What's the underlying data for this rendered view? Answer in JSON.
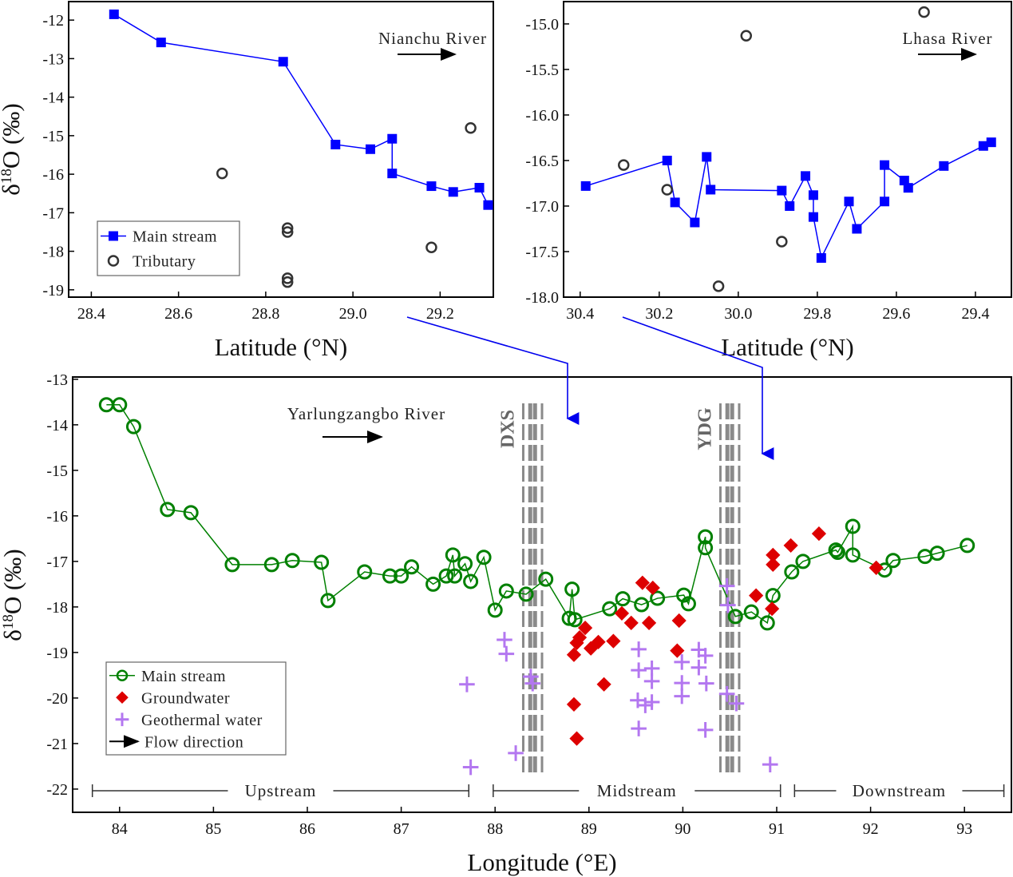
{
  "chart_data": [
    {
      "id": "nianchu",
      "type": "scatter",
      "annotation": "Nianchu River",
      "xlabel": "Latitude (°N)",
      "ylabel_prefix": "δ",
      "ylabel_sup": "18",
      "ylabel_suffix": "O (‰)",
      "xlim": [
        28.348,
        29.322
      ],
      "ylim": [
        -19.19,
        -11.52
      ],
      "xticks": [
        28.4,
        28.6,
        28.8,
        29.0,
        29.2
      ],
      "xtick_labels": [
        "28.4",
        "28.6",
        "28.8",
        "29.0",
        "29.2"
      ],
      "yticks": [
        -12,
        -13,
        -14,
        -15,
        -16,
        -17,
        -18,
        -19
      ],
      "ytick_labels": [
        "-12",
        "-13",
        "-14",
        "-15",
        "-16",
        "-17",
        "-18",
        "-19"
      ],
      "legend_position": "bottom-left",
      "series": [
        {
          "name": "Main  stream",
          "marker": "square",
          "color": "#0000ff",
          "line": true,
          "x": [
            28.452,
            28.56,
            28.84,
            28.96,
            29.04,
            29.09,
            29.09,
            29.18,
            29.23,
            29.29,
            29.31
          ],
          "y": [
            -11.85,
            -12.58,
            -13.08,
            -15.23,
            -15.35,
            -15.08,
            -15.98,
            -16.31,
            -16.46,
            -16.35,
            -16.8
          ]
        },
        {
          "name": "Tributary",
          "marker": "open-circle",
          "color": "#333333",
          "line": false,
          "x": [
            28.7,
            29.27,
            28.85,
            28.85,
            28.85,
            28.85,
            29.18
          ],
          "y": [
            -15.98,
            -14.8,
            -17.4,
            -17.5,
            -18.7,
            -18.8,
            -17.9
          ]
        }
      ]
    },
    {
      "id": "lhasa",
      "type": "scatter",
      "annotation": "Lhasa River",
      "xlabel": "Latitude (°N)",
      "x_reversed": true,
      "xlim": [
        30.442,
        29.309
      ],
      "ylim": [
        -18.0,
        -14.755
      ],
      "xticks": [
        30.4,
        30.2,
        30.0,
        29.8,
        29.6,
        29.4
      ],
      "xtick_labels": [
        "30.4",
        "30.2",
        "30.0",
        "29.8",
        "29.6",
        "29.4"
      ],
      "yticks": [
        -15.0,
        -15.5,
        -16.0,
        -16.5,
        -17.0,
        -17.5,
        -18.0
      ],
      "ytick_labels": [
        "-15.0",
        "-15.5",
        "-16.0",
        "-16.5",
        "-17.0",
        "-17.5",
        "-18.0"
      ],
      "series": [
        {
          "marker": "square",
          "color": "#0000ff",
          "line": true,
          "x": [
            30.386,
            30.18,
            30.16,
            30.11,
            30.08,
            30.07,
            29.89,
            29.87,
            29.83,
            29.81,
            29.81,
            29.79,
            29.72,
            29.7,
            29.63,
            29.63,
            29.58,
            29.57,
            29.48,
            29.38,
            29.36
          ],
          "y": [
            -16.78,
            -16.5,
            -16.96,
            -17.18,
            -16.46,
            -16.82,
            -16.83,
            -17.0,
            -16.67,
            -16.88,
            -17.12,
            -17.57,
            -16.95,
            -17.25,
            -16.95,
            -16.55,
            -16.72,
            -16.8,
            -16.56,
            -16.34,
            -16.3
          ]
        },
        {
          "marker": "open-circle",
          "color": "#333333",
          "line": false,
          "x": [
            30.29,
            30.18,
            29.98,
            30.05,
            29.89,
            29.53
          ],
          "y": [
            -16.55,
            -16.82,
            -15.13,
            -17.88,
            -17.39,
            -14.87
          ]
        }
      ]
    },
    {
      "id": "yarlung",
      "type": "scatter",
      "annotation": "Yarlungzangbo River",
      "xlabel": "Longitude (°E)",
      "ylabel_prefix": "δ",
      "ylabel_sup": "18",
      "ylabel_suffix": "O (‰)",
      "xlim": [
        83.5,
        93.5
      ],
      "ylim": [
        -22.51,
        -12.95
      ],
      "xticks": [
        84,
        85,
        86,
        87,
        88,
        89,
        90,
        91,
        92,
        93
      ],
      "xtick_labels": [
        "84",
        "85",
        "86",
        "87",
        "88",
        "89",
        "90",
        "91",
        "92",
        "93"
      ],
      "yticks": [
        -13,
        -14,
        -15,
        -16,
        -17,
        -18,
        -19,
        -20,
        -21,
        -22
      ],
      "ytick_labels": [
        "-13",
        "-14",
        "-15",
        "-16",
        "-17",
        "-18",
        "-19",
        "-20",
        "-21",
        "-22"
      ],
      "legend_position": "bottom-left",
      "bands": [
        {
          "label": "DXS",
          "x": [
            88.3,
            88.5
          ]
        },
        {
          "label": "YDG",
          "x": [
            90.4,
            90.6
          ]
        }
      ],
      "regions": [
        {
          "label": "Upstream",
          "x": [
            83.71,
            87.72
          ]
        },
        {
          "label": "Midstream",
          "x": [
            87.98,
            91.04
          ]
        },
        {
          "label": "Downstream",
          "x": [
            91.19,
            93.42
          ]
        }
      ],
      "flow_label": "Flow direction",
      "series": [
        {
          "name": "Main stream",
          "marker": "open-circle",
          "color": "#008000",
          "line": true,
          "x": [
            83.86,
            84.0,
            84.15,
            84.51,
            84.76,
            85.2,
            85.62,
            85.84,
            86.15,
            86.22,
            86.61,
            86.88,
            87.0,
            87.11,
            87.34,
            87.48,
            87.55,
            87.57,
            87.68,
            87.74,
            87.88,
            88.0,
            88.12,
            88.33,
            88.54,
            88.79,
            88.82,
            88.85,
            89.22,
            89.36,
            89.56,
            89.73,
            90.01,
            90.06,
            90.24,
            90.24,
            90.56,
            90.73,
            90.9,
            90.96,
            91.16,
            91.28,
            91.63,
            91.65,
            91.81,
            91.81,
            92.15,
            92.24,
            92.58,
            92.71,
            93.03
          ],
          "y": [
            -13.56,
            -13.56,
            -14.04,
            -15.86,
            -15.93,
            -17.07,
            -17.07,
            -16.98,
            -17.02,
            -17.86,
            -17.23,
            -17.32,
            -17.32,
            -17.12,
            -17.5,
            -17.32,
            -16.86,
            -17.32,
            -17.05,
            -17.44,
            -16.91,
            -18.07,
            -17.65,
            -17.72,
            -17.39,
            -18.25,
            -17.61,
            -18.28,
            -18.04,
            -17.82,
            -17.95,
            -17.81,
            -17.74,
            -17.93,
            -16.46,
            -16.7,
            -18.21,
            -18.11,
            -18.35,
            -17.75,
            -17.23,
            -17.0,
            -16.75,
            -16.8,
            -16.23,
            -16.86,
            -17.19,
            -16.98,
            -16.89,
            -16.82,
            -16.65
          ]
        },
        {
          "name": "Groundwater",
          "marker": "diamond",
          "color": "#dd0000",
          "line": false,
          "x": [
            88.84,
            88.87,
            88.84,
            88.87,
            88.9,
            88.96,
            89.02,
            89.1,
            89.26,
            89.16,
            89.35,
            89.45,
            89.57,
            89.68,
            89.64,
            89.96,
            89.94,
            90.96,
            90.96,
            90.95,
            90.78,
            91.15,
            91.45,
            92.06
          ],
          "y": [
            -20.14,
            -20.89,
            -19.05,
            -18.79,
            -18.67,
            -18.46,
            -18.91,
            -18.77,
            -18.75,
            -19.7,
            -18.14,
            -18.35,
            -17.47,
            -17.58,
            -18.35,
            -18.3,
            -18.96,
            -16.86,
            -17.07,
            -18.04,
            -17.75,
            -16.65,
            -16.39,
            -17.14
          ]
        },
        {
          "name": "Geothermal water",
          "marker": "plus",
          "color": "#b377f0",
          "line": false,
          "x": [
            87.7,
            87.74,
            88.1,
            88.12,
            88.22,
            88.38,
            88.4,
            89.53,
            89.53,
            89.52,
            89.53,
            89.6,
            89.67,
            89.67,
            89.67,
            89.99,
            89.99,
            89.99,
            90.17,
            90.17,
            90.24,
            90.25,
            90.24,
            90.47,
            90.48,
            90.47,
            90.57,
            90.93
          ],
          "y": [
            -19.7,
            -21.52,
            -18.72,
            -19.03,
            -21.21,
            -19.53,
            -19.68,
            -18.93,
            -19.39,
            -20.05,
            -20.67,
            -20.16,
            -19.35,
            -19.63,
            -20.09,
            -19.21,
            -19.67,
            -19.96,
            -18.94,
            -19.33,
            -19.07,
            -19.68,
            -20.7,
            -17.54,
            -17.96,
            -19.91,
            -20.12,
            -21.46
          ]
        }
      ]
    }
  ]
}
